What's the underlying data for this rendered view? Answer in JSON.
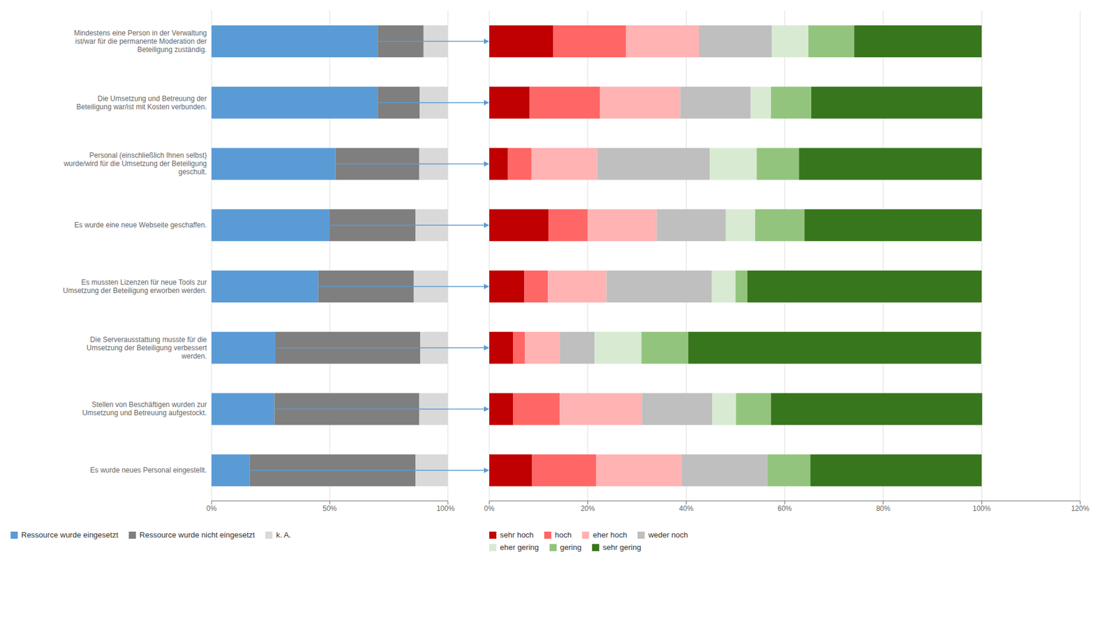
{
  "chart_data": [
    {
      "type": "bar",
      "orientation": "horizontal",
      "stacked": true,
      "categories": [
        "Mindestens eine Person in der Verwaltung\nist/war für die permanente Moderation der\nBeteiligung zuständig.",
        "Die Umsetzung und Betreuung der\nBeteiligung war/ist mit Kosten verbunden.",
        "Personal (einschließlich Ihnen selbst)\nwurde/wird für die Umsetzung der Beteiligung\ngeschult.",
        "Es wurde eine neue Webseite geschaffen.",
        "Es mussten Lizenzen für neue Tools zur\nUmsetzung der Beteiligung erworben werden.",
        "Die Serverausstattung musste für die\nUmsetzung der Beteiligung verbessert\nwerden.",
        "Stellen von Beschäftigen wurden zur\nUmsetzung und Betreuung aufgestockt.",
        "Es wurde neues Personal eingestellt."
      ],
      "series": [
        {
          "name": "Ressource wurde eingesetzt",
          "color": "#5B9BD5",
          "values": [
            70.3,
            70.3,
            52.4,
            50.0,
            45.2,
            27.0,
            26.6,
            16.1
          ]
        },
        {
          "name": "Ressource wurde nicht eingesetzt",
          "color": "#7F7F7F",
          "values": [
            19.4,
            17.7,
            35.5,
            36.3,
            40.3,
            61.3,
            61.3,
            70.2
          ]
        },
        {
          "name": "k. A.",
          "color": "#D9D9D9",
          "values": [
            10.3,
            12.0,
            12.1,
            13.7,
            14.5,
            11.7,
            12.1,
            13.7
          ]
        }
      ],
      "xlim": [
        0,
        100
      ],
      "xticks": [
        {
          "value": 0,
          "label": "0%"
        },
        {
          "value": 50,
          "label": "50%"
        },
        {
          "value": 100,
          "label": "100%"
        }
      ],
      "grid": true,
      "legend": "bottom"
    },
    {
      "type": "bar",
      "orientation": "horizontal",
      "stacked": true,
      "tick_labels": "x",
      "categories": [
        "Mindestens eine Person in der Verwaltung\nist/war für die permanente Moderation der\nBeteiligung zuständig.",
        "Die Umsetzung und Betreuung der\nBeteiligung war/ist mit Kosten verbunden.",
        "Personal (einschließlich Ihnen selbst)\nwurde/wird für die Umsetzung der Beteiligung\ngeschult.",
        "Es wurde eine neue Webseite geschaffen.",
        "Es mussten Lizenzen für neue Tools zur\nUmsetzung der Beteiligung erworben werden.",
        "Die Serverausstattung musste für die\nUmsetzung der Beteiligung verbessert\nwerden.",
        "Stellen von Beschäftigen wurden zur\nUmsetzung und Betreuung aufgestockt.",
        "Es wurde neues Personal eingestellt."
      ],
      "series": [
        {
          "name": "sehr hoch",
          "color": "#C00000",
          "values": [
            13.0,
            8.2,
            3.8,
            12.0,
            7.1,
            4.8,
            4.8,
            8.7
          ]
        },
        {
          "name": "hoch",
          "color": "#FF6666",
          "values": [
            14.8,
            14.3,
            4.8,
            8.0,
            4.8,
            2.4,
            9.5,
            13.0
          ]
        },
        {
          "name": "eher hoch",
          "color": "#FFB3B3",
          "values": [
            14.8,
            16.3,
            13.3,
            14.0,
            11.9,
            7.1,
            16.7,
            17.4
          ]
        },
        {
          "name": "weder noch",
          "color": "#BFBFBF",
          "values": [
            14.8,
            14.3,
            22.9,
            14.0,
            21.4,
            7.1,
            14.3,
            17.4
          ]
        },
        {
          "name": "eher gering",
          "color": "#D9EAD3",
          "values": [
            7.4,
            4.1,
            9.5,
            6.0,
            4.8,
            9.5,
            4.8,
            0.0
          ]
        },
        {
          "name": "gering",
          "color": "#93C47D",
          "values": [
            9.3,
            8.2,
            8.6,
            10.0,
            2.4,
            9.5,
            7.1,
            8.7
          ]
        },
        {
          "name": "sehr gering",
          "color": "#38761D",
          "values": [
            25.9,
            34.7,
            37.1,
            36.0,
            47.6,
            59.5,
            42.9,
            34.8
          ]
        }
      ],
      "xlim": [
        0,
        120
      ],
      "xticks": [
        {
          "value": 0,
          "label": "0%"
        },
        {
          "value": 20,
          "label": "20%"
        },
        {
          "value": 40,
          "label": "40%"
        },
        {
          "value": 60,
          "label": "60%"
        },
        {
          "value": 80,
          "label": "80%"
        },
        {
          "value": 100,
          "label": "100%"
        },
        {
          "value": 120,
          "label": "120%"
        }
      ],
      "grid": true,
      "legend": "bottom"
    }
  ]
}
